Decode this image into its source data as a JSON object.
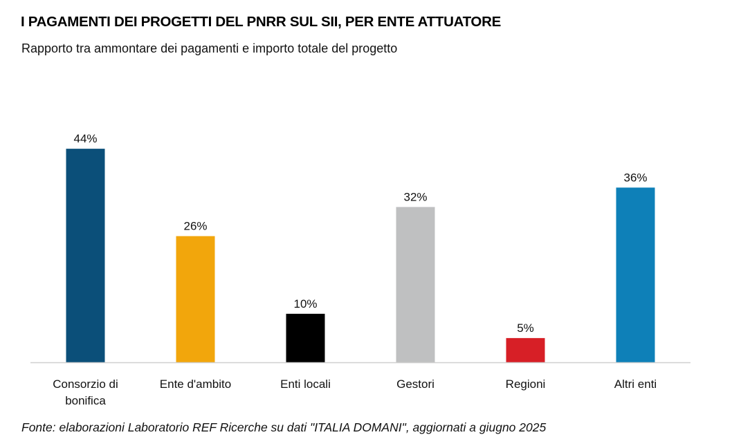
{
  "header": {
    "title": "I PAGAMENTI DEI PROGETTI DEL PNRR SUL SII, PER ENTE ATTUATORE",
    "subtitle": "Rapporto tra ammontare dei pagamenti e importo totale del progetto"
  },
  "footer": {
    "source": "Fonte: elaborazioni Laboratorio REF Ricerche su dati \"ITALIA DOMANI\", aggiornati a giugno 2025"
  },
  "chart_data": {
    "type": "bar",
    "title": "I PAGAMENTI DEI PROGETTI DEL PNRR SUL SII, PER ENTE ATTUATORE",
    "subtitle": "Rapporto tra ammontare dei pagamenti e importo totale del progetto",
    "categories": [
      [
        "Consorzio di",
        "bonifica"
      ],
      [
        "Ente d'ambito"
      ],
      [
        "Enti locali"
      ],
      [
        "Gestori"
      ],
      [
        "Regioni"
      ],
      [
        "Altri enti"
      ]
    ],
    "values": [
      44,
      26,
      10,
      32,
      5,
      36
    ],
    "data_labels": [
      "44%",
      "26%",
      "10%",
      "32%",
      "5%",
      "36%"
    ],
    "colors": [
      "#0b4f79",
      "#f2a60c",
      "#000000",
      "#bfc0c1",
      "#d71f26",
      "#0e80b8"
    ],
    "ylim": [
      0,
      50
    ],
    "grid": false,
    "y_axis_visible": false,
    "legend": "none"
  }
}
